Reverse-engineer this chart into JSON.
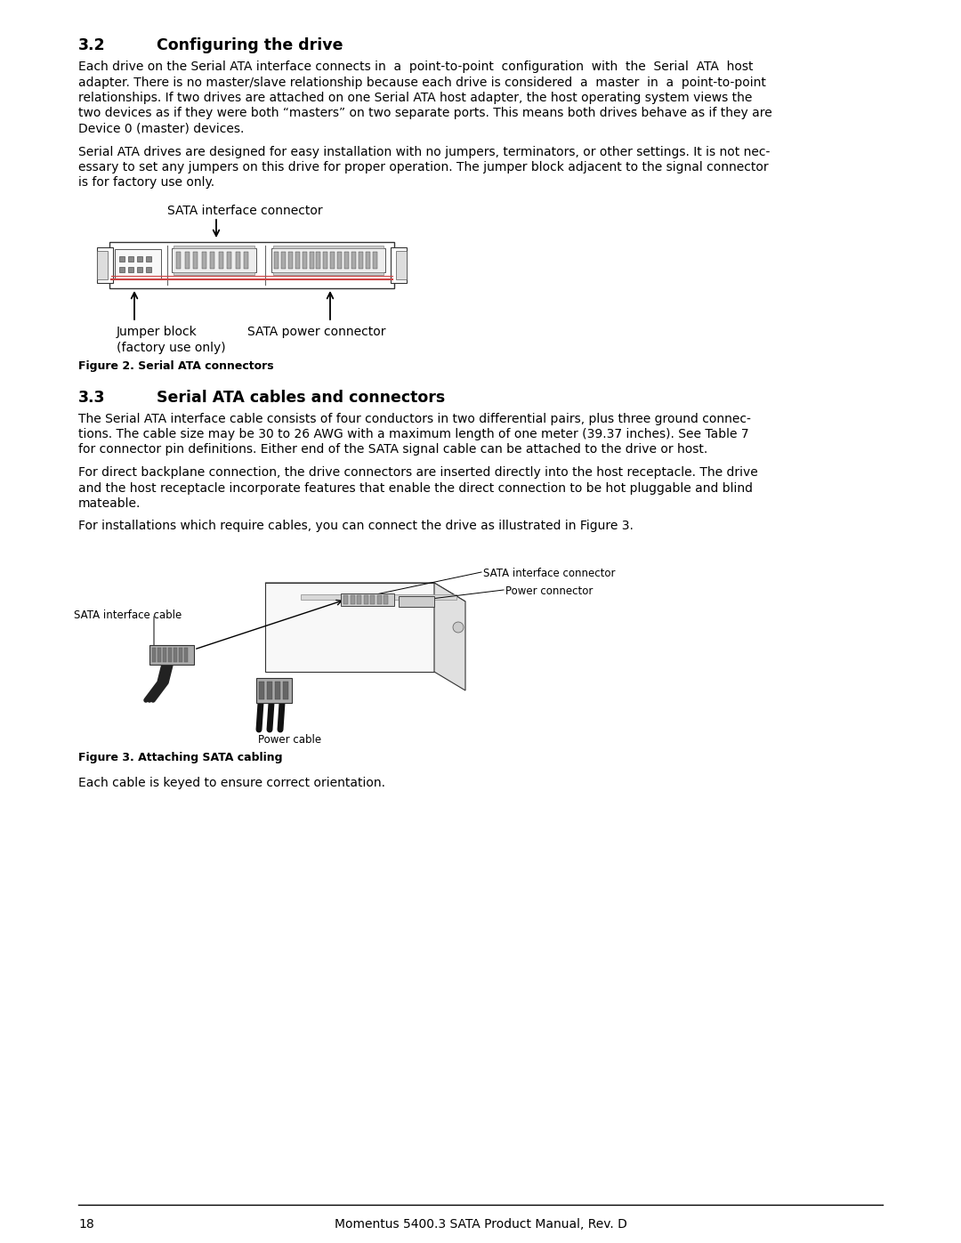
{
  "background_color": "#ffffff",
  "page_number": "18",
  "footer_text": "Momentus 5400.3 SATA Product Manual, Rev. D",
  "section_32_heading": "3.2",
  "section_32_title": "Configuring the drive",
  "section_32_para1": "Each drive on the Serial ATA interface connects in  a  point-to-point  configuration  with  the  Serial  ATA  host adapter. There is no master/slave relationship because each drive is considered  a  master  in  a  point-to-point relationships. If two drives are attached on one Serial ATA host adapter, the host operating system views the two devices as if they were both “masters” on two separate ports. This means both drives behave as if they are Device 0 (master) devices.",
  "section_32_para1_lines": [
    "Each drive on the Serial ATA interface connects in  a  point-to-point  configuration  with  the  Serial  ATA  host",
    "adapter. There is no master/slave relationship because each drive is considered  a  master  in  a  point-to-point",
    "relationships. If two drives are attached on one Serial ATA host adapter, the host operating system views the",
    "two devices as if they were both “masters” on two separate ports. This means both drives behave as if they are",
    "Device 0 (master) devices."
  ],
  "section_32_para2_lines": [
    "Serial ATA drives are designed for easy installation with no jumpers, terminators, or other settings. It is not nec-",
    "essary to set any jumpers on this drive for proper operation. The jumper block adjacent to the signal connector",
    "is for factory use only."
  ],
  "fig2_label_top": "SATA interface connector",
  "fig2_label_bottom_left_line1": "Jumper block",
  "fig2_label_bottom_left_line2": "(factory use only)",
  "fig2_label_bottom_right": "SATA power connector",
  "fig2_caption": "Figure 2. Serial ATA connectors",
  "section_33_heading": "3.3",
  "section_33_title": "Serial ATA cables and connectors",
  "section_33_para1_lines": [
    "The Serial ATA interface cable consists of four conductors in two differential pairs, plus three ground connec-",
    "tions. The cable size may be 30 to 26 AWG with a maximum length of one meter (39.37 inches). See Table 7",
    "for connector pin definitions. Either end of the SATA signal cable can be attached to the drive or host."
  ],
  "section_33_para2_lines": [
    "For direct backplane connection, the drive connectors are inserted directly into the host receptacle. The drive",
    "and the host receptacle incorporate features that enable the direct connection to be hot pluggable and blind",
    "mateable."
  ],
  "section_33_para3": "For installations which require cables, you can connect the drive as illustrated in Figure 3.",
  "fig3_label_top_right1": "SATA interface connector",
  "fig3_label_top_right2": "Power connector",
  "fig3_label_left": "SATA interface cable",
  "fig3_label_bottom": "Power cable",
  "fig3_caption": "Figure 3. Attaching SATA cabling",
  "final_para": "Each cable is keyed to ensure correct orientation.",
  "body_fontsize": 10.0,
  "heading_fontsize": 12.5,
  "caption_fontsize": 9.0,
  "small_label_fontsize": 8.5,
  "section_color": "#000000",
  "text_color": "#000000"
}
